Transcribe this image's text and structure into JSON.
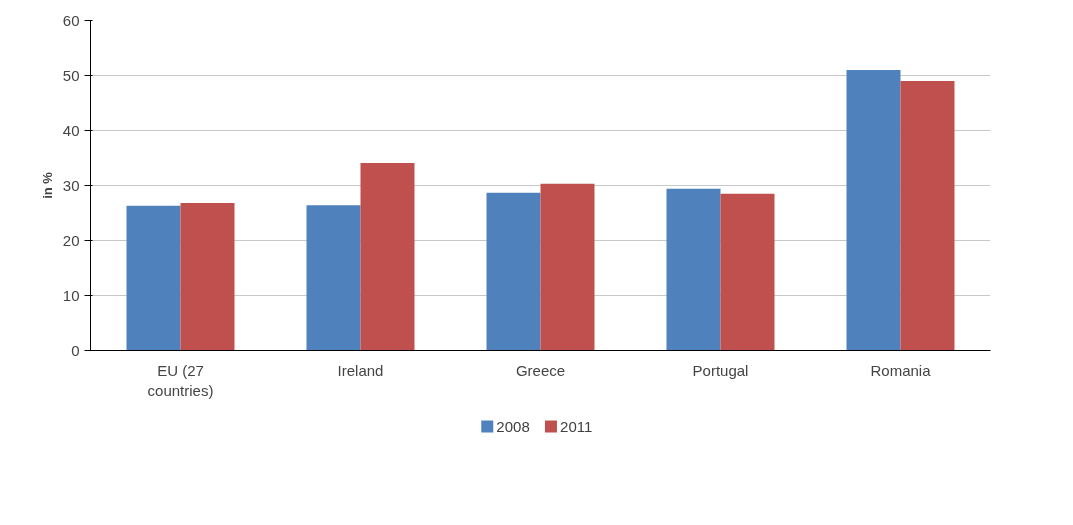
{
  "chart_data": {
    "type": "bar",
    "ylabel": "in %",
    "categories": [
      "EU (27 countries)",
      "Ireland",
      "Greece",
      "Portugal",
      "Romania"
    ],
    "series": [
      {
        "name": "2008",
        "color": "#4f81bd",
        "values": [
          26.3,
          26.4,
          28.7,
          29.4,
          51.0
        ]
      },
      {
        "name": "2011",
        "color": "#c0504d",
        "values": [
          26.8,
          34.1,
          30.3,
          28.5,
          49.0
        ]
      }
    ],
    "ylim": [
      0,
      60
    ],
    "yticks": [
      0,
      10,
      20,
      30,
      40,
      50,
      60
    ],
    "grid": "y",
    "legend": "bottom"
  }
}
